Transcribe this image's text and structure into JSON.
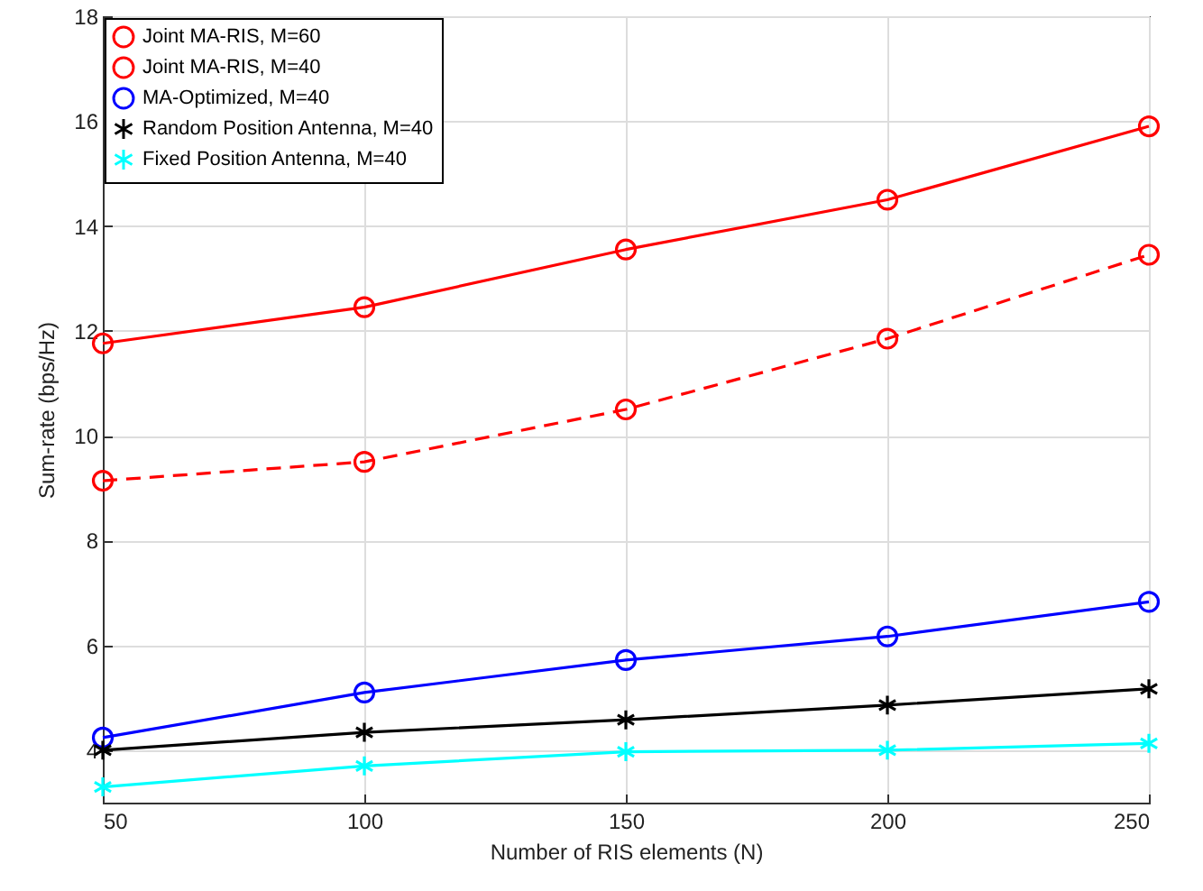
{
  "chart_data": {
    "type": "line",
    "xlabel": "Number of RIS elements (N)",
    "ylabel": "Sum-rate (bps/Hz)",
    "x": [
      50,
      100,
      150,
      200,
      250
    ],
    "xlim": [
      50,
      250
    ],
    "xticks": [
      50,
      100,
      150,
      200,
      250
    ],
    "ylim": [
      3,
      18
    ],
    "yticks": [
      4,
      6,
      8,
      10,
      12,
      14,
      16,
      18
    ],
    "grid": true,
    "legend": "top left",
    "series": [
      {
        "name": "Joint MA-RIS, M=60",
        "color": "#ff0000",
        "marker": "circle",
        "line_style": "solid",
        "values": [
          11.76,
          12.45,
          13.55,
          14.5,
          15.9
        ]
      },
      {
        "name": "Joint MA-RIS, M=40",
        "color": "#ff0000",
        "marker": "circle",
        "line_style": "dashed",
        "values": [
          9.14,
          9.5,
          10.5,
          11.85,
          13.45
        ]
      },
      {
        "name": "MA-Optimized, M=40",
        "color": "#0000ff",
        "marker": "circle",
        "line_style": "solid",
        "values": [
          4.24,
          5.1,
          5.72,
          6.17,
          6.83
        ]
      },
      {
        "name": "Random Position Antenna, M=40",
        "color": "#000000",
        "marker": "cross",
        "line_style": "solid",
        "values": [
          4.0,
          4.34,
          4.58,
          4.86,
          5.17
        ]
      },
      {
        "name": "Fixed Position Antenna, M=40",
        "color": "#00ffff",
        "marker": "cross",
        "line_style": "solid",
        "values": [
          3.3,
          3.7,
          3.97,
          4.0,
          4.13
        ]
      }
    ]
  }
}
